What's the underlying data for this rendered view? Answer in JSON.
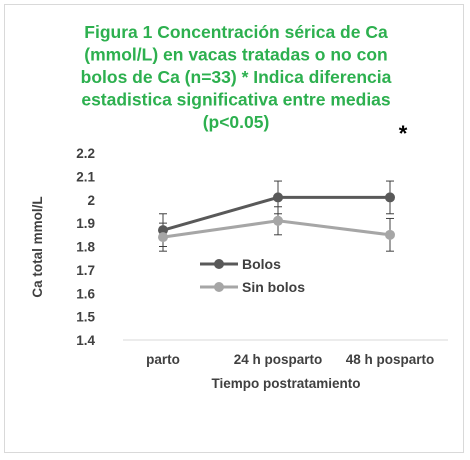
{
  "chart_data": {
    "type": "line",
    "title_lines": [
      "Figura 1 Concentración sérica de Ca",
      "(mmol/L) en vacas tratadas o no con",
      "bolos de Ca (n=33) * Indica diferencia",
      "estadistica significativa entre medias",
      "(p<0.05)"
    ],
    "title_color": "#2db04f",
    "xlabel": "Tiempo postratamiento",
    "ylabel": "Ca total mmol/L",
    "categories": [
      "parto",
      "24 h posparto",
      "48 h posparto"
    ],
    "ylim": [
      1.4,
      2.2
    ],
    "yticks": [
      "2.2",
      "2.1",
      "2",
      "1.9",
      "1.8",
      "1.7",
      "1.6",
      "1.5",
      "1.4"
    ],
    "grid": false,
    "legend_position": "center",
    "series": [
      {
        "name": "Bolos",
        "values": [
          1.87,
          2.01,
          2.01
        ],
        "error": [
          0.07,
          0.07,
          0.07
        ],
        "color": "#595959"
      },
      {
        "name": "Sin bolos",
        "values": [
          1.84,
          1.91,
          1.85
        ],
        "error": [
          0.06,
          0.06,
          0.07
        ],
        "color": "#a6a6a6"
      }
    ],
    "annotation": "*"
  }
}
